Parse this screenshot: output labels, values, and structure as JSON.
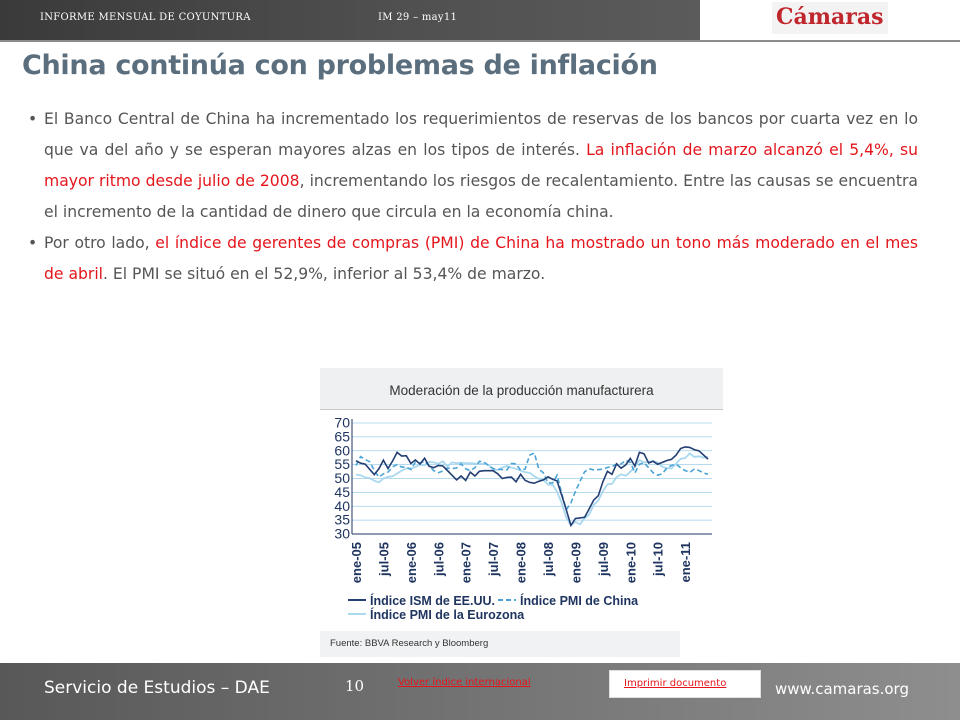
{
  "header": {
    "report_name": "INFORME MENSUAL DE COYUNTURA",
    "issue": "IM 29 – may11",
    "logo_text": "Cámaras"
  },
  "page_title": "China continúa con problemas de inflación",
  "bullets": [
    {
      "segments": [
        {
          "text": "El Banco Central de China ha incrementado los requerimientos de reservas de los bancos por cuarta vez en lo que va del año y se esperan mayores alzas en los tipos de interés. ",
          "highlight": false
        },
        {
          "text": "La inflación de marzo alcanzó el 5,4%, su mayor ritmo desde julio de 2008",
          "highlight": true
        },
        {
          "text": ", incrementando los riesgos de recalentamiento. Entre las causas se encuentra el incremento de la cantidad de dinero que circula en la economía china.",
          "highlight": false
        }
      ]
    },
    {
      "segments": [
        {
          "text": "Por otro lado, ",
          "highlight": false
        },
        {
          "text": "el índice de gerentes de compras (PMI) de China ha mostrado un tono más moderado en el mes de abril",
          "highlight": true
        },
        {
          "text": ". El PMI se situó en el 52,9%, inferior al 53,4% de marzo.",
          "highlight": false
        }
      ]
    }
  ],
  "figure": {
    "title": "Moderación de la producción manufacturera",
    "source": "Fuente: BBVA Research y Bloomberg"
  },
  "chart_data": {
    "type": "line",
    "ylim": [
      30,
      70
    ],
    "yticks": [
      30,
      35,
      40,
      45,
      50,
      55,
      60,
      65,
      70
    ],
    "xticks": [
      "ene-05",
      "jul-05",
      "ene-06",
      "jul-06",
      "ene-07",
      "jul-07",
      "ene-08",
      "jul-08",
      "ene-09",
      "jul-09",
      "ene-10",
      "jul-10",
      "ene-11"
    ],
    "x_start_index": 0,
    "x_end_index": 77,
    "grid": true,
    "legend_position": "bottom",
    "series": [
      {
        "name": "Índice ISM de EE.UU.",
        "color": "#243f73",
        "dash": "solid",
        "values": [
          56.4,
          55.5,
          55.2,
          53.3,
          51.4,
          53.5,
          56.6,
          53.6,
          56.3,
          59.4,
          58.1,
          58.2,
          55.4,
          56.7,
          55.2,
          57.3,
          54.4,
          53.9,
          54.7,
          54.5,
          52.9,
          51.2,
          49.5,
          50.9,
          49.3,
          52.3,
          50.9,
          52.6,
          52.8,
          52.8,
          52.8,
          51.7,
          50.0,
          50.4,
          50.5,
          48.8,
          51.5,
          49.3,
          48.6,
          48.3,
          49.0,
          49.5,
          50.6,
          49.7,
          49.1,
          44.0,
          38.7,
          33.1,
          35.6,
          35.8,
          36.0,
          39.0,
          42.2,
          43.8,
          48.8,
          52.6,
          51.5,
          55.3,
          53.7,
          54.9,
          57.2,
          54.5,
          59.4,
          58.9,
          55.6,
          56.2,
          55.1,
          55.8,
          56.5,
          56.9,
          58.4,
          60.8,
          61.4,
          61.2,
          60.4,
          60.0,
          58.5,
          57.0
        ]
      },
      {
        "name": "Índice PMI de China",
        "color": "#4ba3d6",
        "dash": "dashed",
        "values": [
          54.7,
          57.9,
          56.9,
          56.0,
          52.9,
          50.5,
          51.7,
          52.3,
          54.2,
          55.0,
          54.1,
          54.1,
          53.2,
          55.9,
          55.6,
          56.2,
          54.6,
          52.8,
          52.1,
          52.7,
          53.7,
          53.6,
          53.8,
          55.3,
          53.5,
          52.8,
          53.9,
          56.2,
          55.9,
          54.7,
          53.6,
          53.3,
          53.2,
          53.1,
          55.4,
          55.3,
          53.0,
          53.4,
          58.4,
          59.2,
          53.3,
          52.0,
          48.4,
          48.4,
          51.2,
          44.6,
          38.8,
          41.2,
          45.3,
          49.0,
          52.4,
          53.5,
          53.1,
          53.2,
          53.3,
          54.0,
          54.3,
          55.2,
          55.2,
          56.6,
          55.8,
          52.0,
          55.1,
          55.7,
          53.9,
          52.1,
          51.2,
          51.7,
          53.8,
          54.7,
          55.2,
          53.9,
          52.9,
          52.2,
          53.4,
          52.9,
          52.0,
          51.5
        ]
      },
      {
        "name": "Índice PMI de la Eurozona",
        "color": "#a9d8ef",
        "dash": "solid",
        "values": [
          51.4,
          51.2,
          50.4,
          50.1,
          49.2,
          48.6,
          50.0,
          50.6,
          50.8,
          51.8,
          52.8,
          53.6,
          53.6,
          54.1,
          55.0,
          54.8,
          55.9,
          55.8,
          55.3,
          56.2,
          54.3,
          55.8,
          55.5,
          55.7,
          55.5,
          55.5,
          55.4,
          55.2,
          55.4,
          54.9,
          53.1,
          53.1,
          54.0,
          54.5,
          53.9,
          53.5,
          52.8,
          52.3,
          52.0,
          50.8,
          49.9,
          49.5,
          47.8,
          47.7,
          45.2,
          41.1,
          35.9,
          33.1,
          34.4,
          33.5,
          35.7,
          37.0,
          40.5,
          42.1,
          45.4,
          47.9,
          48.1,
          50.5,
          51.5,
          51.0,
          52.4,
          54.2,
          56.6,
          55.8,
          56.0,
          56.3,
          55.7,
          54.2,
          53.7,
          53.6,
          55.3,
          57.1,
          57.3,
          59.0,
          57.8,
          58.0,
          57.5,
          57.8
        ]
      }
    ]
  },
  "footer": {
    "department": "Servicio de Estudios – DAE",
    "page_number": "10",
    "back_link": "Volver índice internacional",
    "print_link": "Imprimir documento",
    "website": "www.camaras.org"
  },
  "colors": {
    "title": "#5a6e7e",
    "highlight_red": "#e4161c",
    "body_text": "#555555",
    "logo_red": "#c0272d"
  }
}
